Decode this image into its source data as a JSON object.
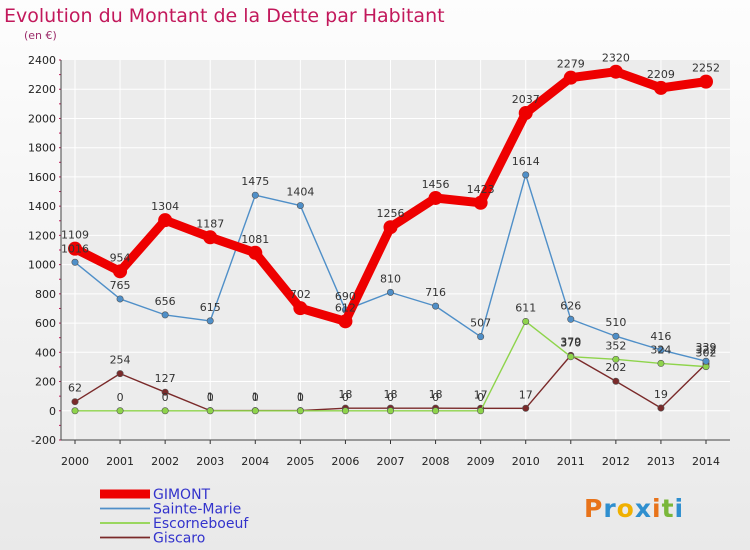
{
  "title": "Evolution du Montant de la Dette par Habitant",
  "subtitle": "(en €)",
  "logo_text": "Proxiti",
  "colors": {
    "title": "#c2185b",
    "subtitle": "#9c2d6b",
    "legend_text": "#3333cc",
    "plot_bg": "#ececec",
    "grid": "#ffffff",
    "axis": "#333333"
  },
  "chart_data": {
    "type": "line",
    "title": "Evolution du Montant de la Dette par Habitant",
    "ylabel": "(en €)",
    "ylim": [
      -200,
      2400
    ],
    "yticks": [
      -200,
      0,
      200,
      400,
      600,
      800,
      1000,
      1200,
      1400,
      1600,
      1800,
      2000,
      2200,
      2400
    ],
    "x": [
      "2000",
      "2001",
      "2002",
      "2003",
      "2004",
      "2005",
      "2006",
      "2007",
      "2008",
      "2009",
      "2010",
      "2011",
      "2012",
      "2013",
      "2014"
    ],
    "grid": true,
    "legend_position": "bottom-left",
    "series": [
      {
        "name": "GIMONT",
        "color": "#ee0000",
        "values": [
          1109,
          954,
          1304,
          1187,
          1081,
          702,
          612,
          1256,
          1456,
          1423,
          2037,
          2279,
          2320,
          2209,
          2252
        ],
        "labels": [
          "1109",
          "954",
          "1304",
          "1187",
          "1081",
          "702",
          "612",
          "1256",
          "1456",
          "1423",
          "2037",
          "2279",
          "2320",
          "2209",
          "2252"
        ]
      },
      {
        "name": "Sainte-Marie",
        "color": "#4f8fc8",
        "values": [
          1016,
          765,
          656,
          615,
          1475,
          1404,
          690,
          810,
          716,
          507,
          1614,
          626,
          510,
          416,
          339
        ],
        "labels": [
          "1016",
          "765",
          "656",
          "615",
          "1475",
          "1404",
          "690",
          "810",
          "716",
          "507",
          "1614",
          "626",
          "510",
          "416",
          "339"
        ]
      },
      {
        "name": "Escorneboeuf",
        "color": "#8ed44b",
        "values": [
          0,
          0,
          0,
          0,
          0,
          0,
          0,
          0,
          0,
          0,
          611,
          370,
          352,
          324,
          302
        ],
        "labels": [
          "",
          "0",
          "0",
          "0",
          "0",
          "0",
          "0",
          "0",
          "0",
          "0",
          "611",
          "370",
          "352",
          "324",
          "302"
        ]
      },
      {
        "name": "Giscaro",
        "color": "#7a2a2a",
        "values": [
          62,
          254,
          127,
          1,
          1,
          1,
          18,
          18,
          18,
          17,
          17,
          379,
          202,
          19,
          322
        ],
        "labels": [
          "62",
          "254",
          "127",
          "1",
          "1",
          "1",
          "18",
          "18",
          "18",
          "17",
          "17",
          "379",
          "202",
          "19",
          "322"
        ]
      }
    ]
  }
}
